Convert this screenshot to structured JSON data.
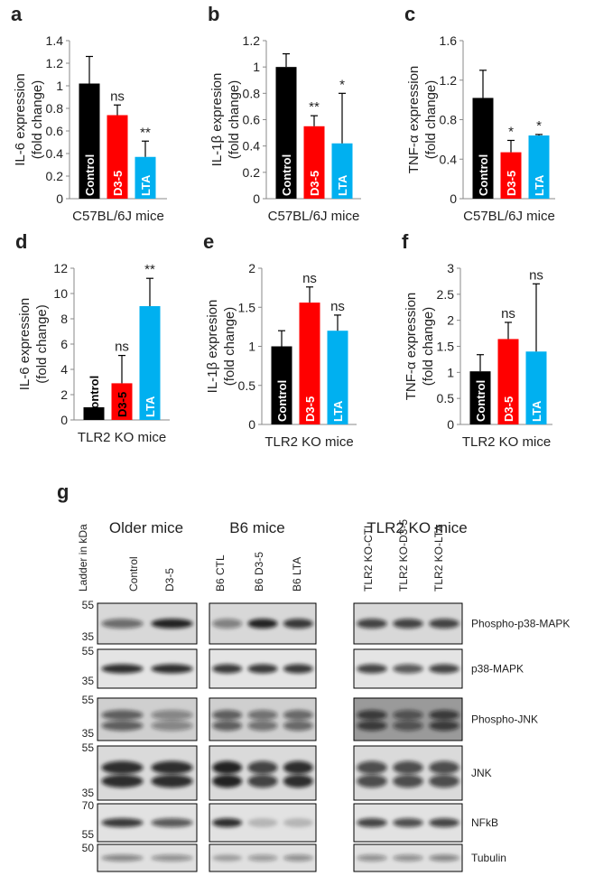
{
  "chart_data": [
    {
      "type": "bar",
      "panel": "a",
      "ylabel": [
        "IL-6 expression",
        "(fold change)"
      ],
      "xlabel": "C57BL/6J mice",
      "categories": [
        "Control",
        "D3-5",
        "LTA"
      ],
      "colors": [
        "#000000",
        "#ff0000",
        "#00b0f0"
      ],
      "values": [
        1.02,
        0.74,
        0.37
      ],
      "errors": [
        0.24,
        0.09,
        0.14
      ],
      "significance": [
        null,
        "ns",
        "**"
      ],
      "ylim": [
        0,
        1.4
      ],
      "yticks": [
        0,
        0.2,
        0.4,
        0.6,
        0.8,
        1,
        1.2,
        1.4
      ]
    },
    {
      "type": "bar",
      "panel": "b",
      "ylabel": [
        "IL-1β expresion",
        "(fold change)"
      ],
      "xlabel": "C57BL/6J mice",
      "categories": [
        "Control",
        "D3-5",
        "LTA"
      ],
      "colors": [
        "#000000",
        "#ff0000",
        "#00b0f0"
      ],
      "values": [
        1.0,
        0.55,
        0.42
      ],
      "errors": [
        0.1,
        0.08,
        0.38
      ],
      "significance": [
        null,
        "**",
        "*"
      ],
      "ylim": [
        0,
        1.2
      ],
      "yticks": [
        0,
        0.2,
        0.4,
        0.6,
        0.8,
        1,
        1.2
      ]
    },
    {
      "type": "bar",
      "panel": "c",
      "ylabel": [
        "TNF-α expression",
        "(fold change)"
      ],
      "xlabel": "C57BL/6J mice",
      "categories": [
        "Control",
        "D3-5",
        "LTA"
      ],
      "colors": [
        "#000000",
        "#ff0000",
        "#00b0f0"
      ],
      "values": [
        1.02,
        0.47,
        0.64
      ],
      "errors": [
        0.28,
        0.12,
        0.01
      ],
      "significance": [
        null,
        "*",
        "*"
      ],
      "ylim": [
        0,
        1.6
      ],
      "yticks": [
        0,
        0.4,
        0.8,
        1.2,
        1.6
      ]
    },
    {
      "type": "bar",
      "panel": "d",
      "ylabel": [
        "IL-6 expression",
        "(fold change)"
      ],
      "xlabel": "TLR2 KO mice",
      "categories": [
        "Control",
        "D3-5",
        "LTA"
      ],
      "colors": [
        "#000000",
        "#ff0000",
        "#00b0f0"
      ],
      "values": [
        1.0,
        2.9,
        9.0
      ],
      "errors": [
        null,
        2.2,
        2.2
      ],
      "significance": [
        null,
        "ns",
        "**"
      ],
      "ylim": [
        0,
        12
      ],
      "yticks": [
        0,
        2,
        4,
        6,
        8,
        10,
        12
      ]
    },
    {
      "type": "bar",
      "panel": "e",
      "ylabel": [
        "IL-1β expresion",
        "(fold change)"
      ],
      "xlabel": "TLR2 KO mice",
      "categories": [
        "Control",
        "D3-5",
        "LTA"
      ],
      "colors": [
        "#000000",
        "#ff0000",
        "#00b0f0"
      ],
      "values": [
        1.0,
        1.56,
        1.2
      ],
      "errors": [
        0.2,
        0.2,
        0.2
      ],
      "significance": [
        null,
        "ns",
        "ns"
      ],
      "ylim": [
        0,
        2
      ],
      "yticks": [
        0,
        0.5,
        1,
        1.5,
        2
      ]
    },
    {
      "type": "bar",
      "panel": "f",
      "ylabel": [
        "TNF-α expression",
        "(fold change)"
      ],
      "xlabel": "TLR2 KO mice",
      "categories": [
        "Control",
        "D3-5",
        "LTA"
      ],
      "colors": [
        "#000000",
        "#ff0000",
        "#00b0f0"
      ],
      "values": [
        1.02,
        1.64,
        1.4
      ],
      "errors": [
        0.32,
        0.32,
        1.3
      ],
      "significance": [
        null,
        "ns",
        "ns"
      ],
      "ylim": [
        0,
        3
      ],
      "yticks": [
        0,
        0.5,
        1,
        1.5,
        2,
        2.5,
        3
      ]
    }
  ],
  "blot": {
    "panel": "g",
    "groups": [
      "Older mice",
      "B6 mice",
      "TLR2 KO mice"
    ],
    "ladder_label": "Ladder in kDa",
    "lanes": [
      [
        "Control",
        "D3-5"
      ],
      [
        "B6 CTL",
        "B6 D3-5",
        "B6 LTA"
      ],
      [
        "TLR2 KO-CTL",
        "TLR2 KO-D3-5",
        "TLR2 KO-LTA"
      ]
    ],
    "rows": [
      {
        "label": "Phospho-p38-MAPK",
        "markers": [
          55,
          35
        ]
      },
      {
        "label": "p38-MAPK",
        "markers": [
          55,
          35
        ]
      },
      {
        "label": "Phospho-JNK",
        "markers": [
          55,
          35
        ]
      },
      {
        "label": "JNK",
        "markers": [
          55,
          35
        ]
      },
      {
        "label": "NFkB",
        "markers": [
          70,
          55
        ]
      },
      {
        "label": "Tubulin",
        "markers": [
          50
        ]
      }
    ]
  }
}
